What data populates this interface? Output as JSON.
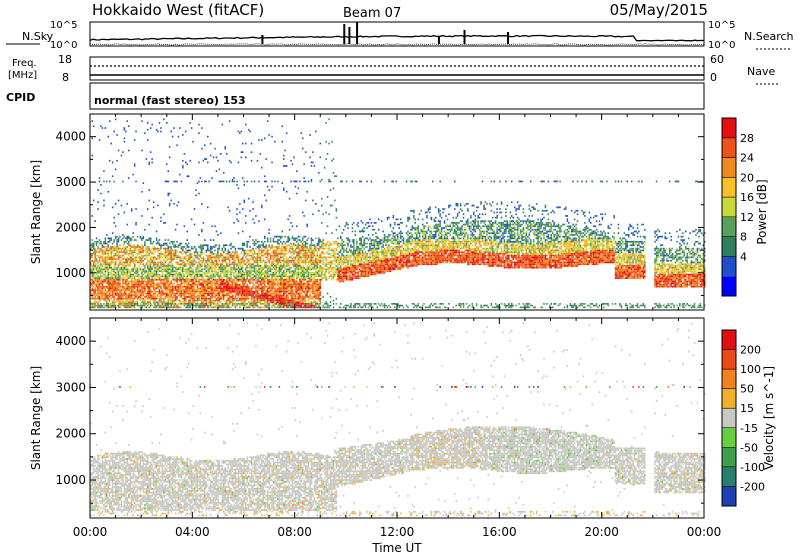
{
  "header": {
    "station": "Hokkaido West (fitACF)",
    "beam": "Beam 07",
    "date": "05/May/2015"
  },
  "noise_panel": {
    "left_label": "N.Sky",
    "right_label": "N.Search",
    "left_ticks": [
      "10^5",
      "10^0"
    ],
    "right_ticks": [
      "10^5",
      "10^0"
    ]
  },
  "freq_panel": {
    "left_label_1": "Freq.",
    "left_label_2": "[MHz]",
    "right_label": "Nave",
    "left_ticks": [
      "18",
      "8"
    ],
    "right_ticks": [
      "60",
      "0"
    ]
  },
  "cpid_panel": {
    "label": "CPID",
    "value": "normal (fast stereo) 153"
  },
  "x_axis": {
    "label": "Time UT",
    "ticks": [
      "00:00",
      "04:00",
      "08:00",
      "12:00",
      "16:00",
      "20:00",
      "00:00"
    ]
  },
  "chart_data": [
    {
      "type": "heatmap",
      "name": "power",
      "xlabel": "Time UT",
      "ylabel": "Slant Range [km]",
      "xlim": [
        0,
        24
      ],
      "ylim": [
        180,
        4500
      ],
      "yticks": [
        "1000",
        "2000",
        "3000",
        "4000"
      ],
      "colorbar": {
        "label": "Power [dB]",
        "ticks": [
          "28",
          "24",
          "20",
          "16",
          "12",
          "8",
          "4"
        ],
        "colors": [
          "#0000ff",
          "#1f4fc9",
          "#2f7f5f",
          "#5aa05a",
          "#c9d83a",
          "#f7c12a",
          "#f08a1e",
          "#ea5418",
          "#e60f0f"
        ]
      }
    },
    {
      "type": "heatmap",
      "name": "velocity",
      "xlabel": "Time UT",
      "ylabel": "Slant Range [km]",
      "xlim": [
        0,
        24
      ],
      "ylim": [
        180,
        4500
      ],
      "yticks": [
        "1000",
        "2000",
        "3000",
        "4000"
      ],
      "colorbar": {
        "label": "Velocity [m s^-1]",
        "ticks": [
          "200",
          "100",
          "50",
          "15",
          "-15",
          "-50",
          "-100",
          "-200"
        ],
        "colors": [
          "#1f3fb4",
          "#2a7f6a",
          "#3f9f4f",
          "#67cf3f",
          "#c8c8c4",
          "#f0b02a",
          "#f08020",
          "#ea4a18",
          "#e01010"
        ]
      }
    }
  ]
}
